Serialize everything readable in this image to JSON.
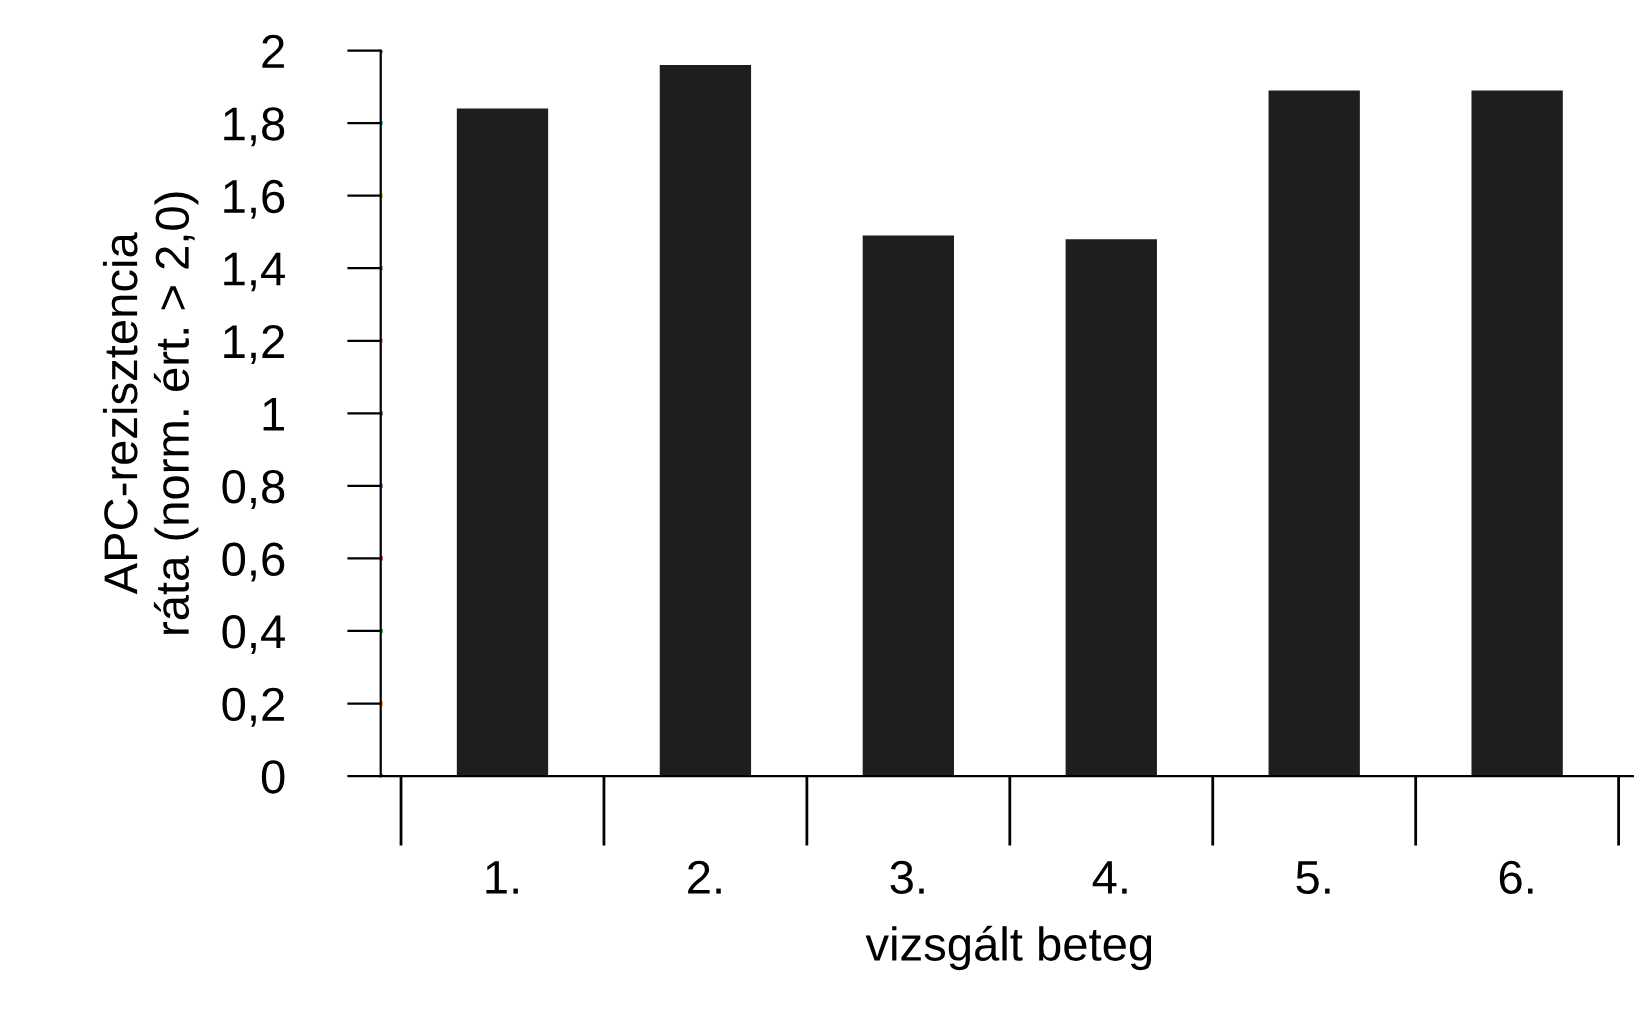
{
  "chart_data": {
    "type": "bar",
    "xlabel": "vizsgált beteg",
    "ylabel": "APC-rezisztencia\nráta (norm. ért. > 2,0)",
    "categories": [
      "1.",
      "2.",
      "3.",
      "4.",
      "5.",
      "6."
    ],
    "values": [
      1.84,
      1.96,
      1.49,
      1.48,
      1.89,
      1.89
    ],
    "color": "#1e1e1e",
    "ylim": [
      0,
      2
    ],
    "yticks": [
      0,
      {
        "value": 0.2,
        "label": "0,2"
      },
      {
        "value": 0.4,
        "label": "0,4"
      },
      {
        "value": 0.6,
        "label": "0,6"
      },
      {
        "value": 0.8,
        "label": "0,8"
      },
      1,
      {
        "value": 1.2,
        "label": "1,2"
      },
      {
        "value": 1.4,
        "label": "1,4"
      },
      {
        "value": 1.6,
        "label": "1,6"
      },
      {
        "value": 1.8,
        "label": "1,8"
      },
      2
    ],
    "grid": false
  }
}
